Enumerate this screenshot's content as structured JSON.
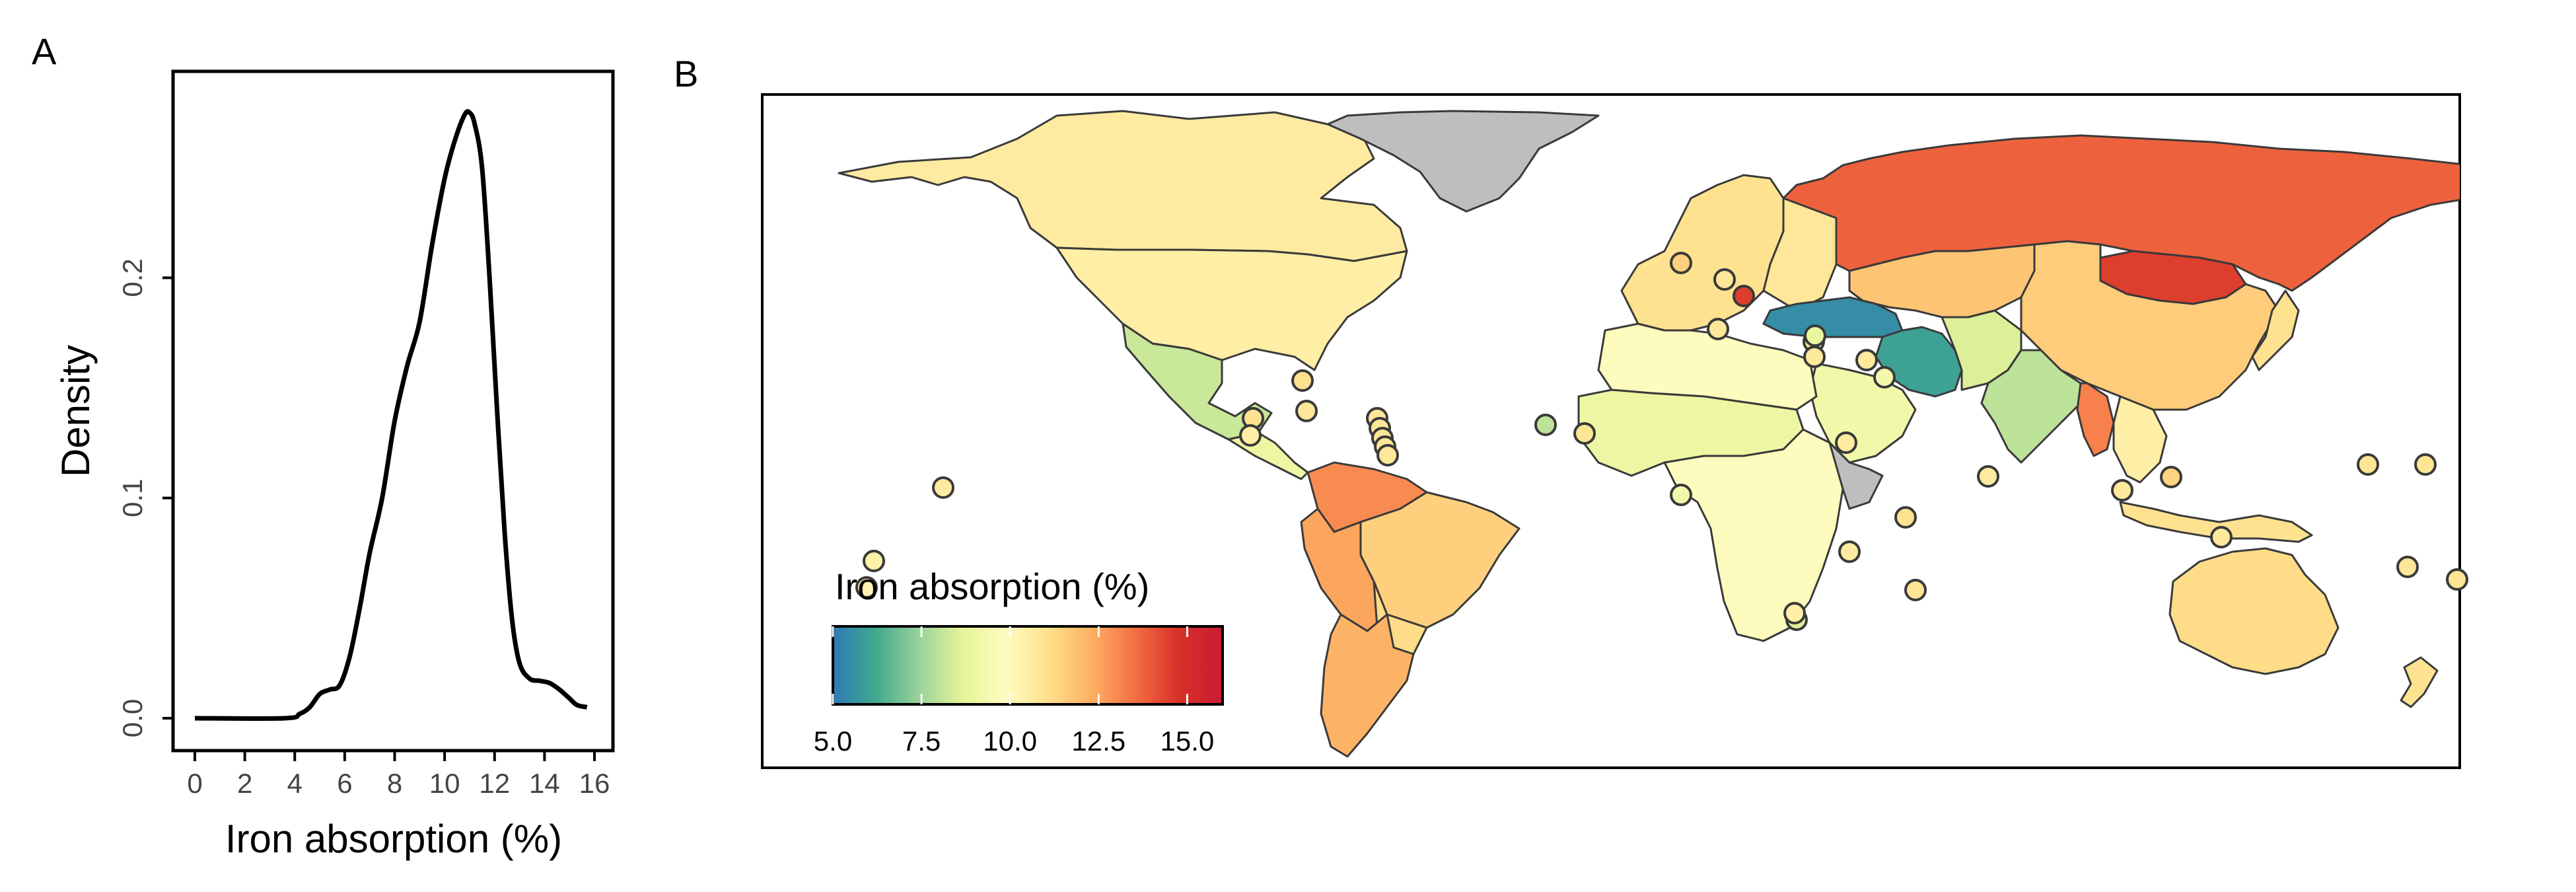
{
  "panel_a": {
    "label": "A"
  },
  "panel_b": {
    "label": "B"
  },
  "chart_data": [
    {
      "type": "line",
      "panel": "A",
      "xlabel": "Iron absorption (%)",
      "ylabel": "Density",
      "xlim": [
        0,
        16
      ],
      "ylim": [
        0,
        0.28
      ],
      "x_ticks": [
        "0",
        "2",
        "4",
        "6",
        "8",
        "10",
        "12",
        "14",
        "16"
      ],
      "y_ticks": [
        "0.0",
        "0.1",
        "0.2"
      ],
      "series": [
        {
          "x": [
            0,
            3.6,
            4.2,
            4.6,
            5.0,
            5.4,
            5.8,
            6.2,
            6.6,
            7.0,
            7.5,
            8.0,
            8.5,
            9.0,
            9.5,
            10.0,
            10.4,
            10.8,
            11.0,
            11.2,
            11.5,
            11.8,
            12.1,
            12.4,
            12.7,
            13.0,
            13.4,
            13.8,
            14.2,
            14.6,
            15.0,
            15.3,
            15.7
          ],
          "y": [
            0.0,
            0.0,
            0.002,
            0.005,
            0.011,
            0.013,
            0.015,
            0.028,
            0.05,
            0.075,
            0.1,
            0.135,
            0.16,
            0.18,
            0.215,
            0.245,
            0.262,
            0.274,
            0.275,
            0.27,
            0.25,
            0.2,
            0.14,
            0.085,
            0.045,
            0.025,
            0.018,
            0.017,
            0.016,
            0.013,
            0.009,
            0.006,
            0.005
          ]
        }
      ]
    },
    {
      "type": "map",
      "panel": "B",
      "legend_title": "Iron absorption (%)",
      "color_scale": {
        "range": [
          5.0,
          16.0
        ],
        "tick_labels": [
          "5.0",
          "7.5",
          "10.0",
          "12.5",
          "15.0"
        ],
        "colors": [
          "#2c7bb6",
          "#41a98d",
          "#9ad39c",
          "#e6f598",
          "#fffbc0",
          "#fee08b",
          "#fdae61",
          "#f46d43",
          "#d73027",
          "#c91c36"
        ]
      },
      "missing_color": "#bebebe",
      "region_values": [
        {
          "region": "Alaska / Canada",
          "value": 10.6
        },
        {
          "region": "United States",
          "value": 10.5
        },
        {
          "region": "Mexico",
          "value": 8.2
        },
        {
          "region": "Central America",
          "value": 9.0
        },
        {
          "region": "Colombia / Venezuela",
          "value": 13.0
        },
        {
          "region": "Peru / Ecuador",
          "value": 12.5
        },
        {
          "region": "Brazil",
          "value": 11.5
        },
        {
          "region": "Bolivia / Paraguay",
          "value": 11.2
        },
        {
          "region": "Chile / Argentina",
          "value": 12.2
        },
        {
          "region": "Greenland",
          "value": null
        },
        {
          "region": "Western Europe",
          "value": 11.0
        },
        {
          "region": "Eastern Europe",
          "value": 10.8
        },
        {
          "region": "Russia",
          "value": 13.8
        },
        {
          "region": "Kazakhstan / Central Asia",
          "value": 11.8
        },
        {
          "region": "Mongolia",
          "value": 14.5
        },
        {
          "region": "China",
          "value": 11.6
        },
        {
          "region": "Turkey / Caucasus",
          "value": 5.5
        },
        {
          "region": "Iran",
          "value": 6.0
        },
        {
          "region": "Arabian Peninsula",
          "value": 9.2
        },
        {
          "region": "Afghanistan / Pakistan",
          "value": 8.5
        },
        {
          "region": "India",
          "value": 8.0
        },
        {
          "region": "Southeast Asia",
          "value": 10.5
        },
        {
          "region": "Myanmar",
          "value": 13.2
        },
        {
          "region": "North Africa",
          "value": 9.8
        },
        {
          "region": "Sahel / West Africa",
          "value": 9.0
        },
        {
          "region": "Central / Southern Africa",
          "value": 9.8
        },
        {
          "region": "Horn of Africa",
          "value": null
        },
        {
          "region": "Australia",
          "value": 11.2
        },
        {
          "region": "New Zealand",
          "value": 11.0
        },
        {
          "region": "Japan",
          "value": 11.0
        },
        {
          "region": "Indonesia / PNG",
          "value": 11.0
        }
      ],
      "points": [
        {
          "name": "Hawaii",
          "value": 10.6
        },
        {
          "name": "Pacific point",
          "value": 10.4
        },
        {
          "name": "Pacific point 2",
          "value": 10.2
        },
        {
          "name": "Bahamas",
          "value": 11.0
        },
        {
          "name": "Central America 1",
          "value": 11.0
        },
        {
          "name": "Central America 2",
          "value": 10.5
        },
        {
          "name": "Cuba",
          "value": 10.8
        },
        {
          "name": "Caribbean 1",
          "value": 10.8
        },
        {
          "name": "Caribbean 2",
          "value": 10.8
        },
        {
          "name": "Caribbean 3",
          "value": 10.8
        },
        {
          "name": "Caribbean 4",
          "value": 10.8
        },
        {
          "name": "Caribbean 5",
          "value": 10.8
        },
        {
          "name": "Cape Verde",
          "value": 8.0
        },
        {
          "name": "Gambia",
          "value": 10.9
        },
        {
          "name": "Gulf of Guinea",
          "value": 9.2
        },
        {
          "name": "Switzerland",
          "value": 11.5
        },
        {
          "name": "Netherlands",
          "value": 10.8
        },
        {
          "name": "Malta",
          "value": 10.8
        },
        {
          "name": "Balkans",
          "value": 14.5
        },
        {
          "name": "Cyprus",
          "value": 10.8
        },
        {
          "name": "Lebanon",
          "value": 8.8
        },
        {
          "name": "Israel",
          "value": 10.7
        },
        {
          "name": "Kuwait",
          "value": 10.7
        },
        {
          "name": "Qatar",
          "value": 9.3
        },
        {
          "name": "Djibouti",
          "value": 10.6
        },
        {
          "name": "Comoros",
          "value": 10.6
        },
        {
          "name": "Mauritius",
          "value": 10.9
        },
        {
          "name": "Seychelles",
          "value": 11.0
        },
        {
          "name": "Maldives",
          "value": 10.6
        },
        {
          "name": "Swaziland",
          "value": 8.5
        },
        {
          "name": "Eswatini area",
          "value": 10.5
        },
        {
          "name": "Malaysia",
          "value": 10.7
        },
        {
          "name": "Philippines",
          "value": 11.4
        },
        {
          "name": "Timor",
          "value": 10.7
        },
        {
          "name": "Micronesia 1",
          "value": 10.9
        },
        {
          "name": "Micronesia 2",
          "value": 10.9
        },
        {
          "name": "Vanuatu",
          "value": 10.8
        },
        {
          "name": "Fiji",
          "value": 10.9
        }
      ]
    }
  ]
}
